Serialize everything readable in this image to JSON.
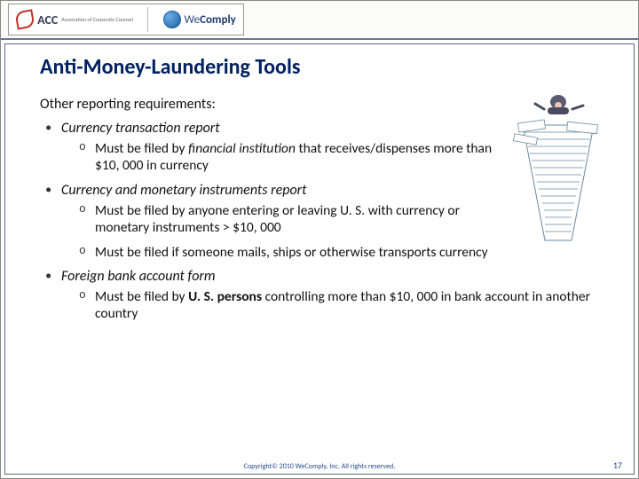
{
  "header": {
    "logo1_main": "ACC",
    "logo1_sub": "Association of\nCorporate Counsel",
    "logo2_text_pre": "We",
    "logo2_text_post": "Comply"
  },
  "title": "Anti-Money-Laundering Tools",
  "lead": "Other reporting requirements:",
  "bullets": [
    {
      "label": "Currency transaction report",
      "italic": true,
      "sub": [
        "Must be filed by <i>financial institution</i> that receives/dispenses more than $10, 000 in currency"
      ],
      "wrap": "narrow"
    },
    {
      "label": "Currency and monetary instruments report",
      "italic": true,
      "sub": [
        "Must be filed by anyone entering or leaving U. S. with currency or monetary instruments > $10, 000",
        "Must be filed if someone mails, ships or otherwise transports currency"
      ],
      "wrap": "narrow"
    },
    {
      "label": "Foreign bank account form",
      "italic": true,
      "sub": [
        "Must be filed by <b>U. S. persons</b> controlling more than $10, 000 in bank account in another country"
      ],
      "wrap": "wide"
    }
  ],
  "footer": "Copyright© 2010 WeComply, Inc. All rights reserved.",
  "page_number": "17",
  "illustration": {
    "desc": "Cartoon figure flying over a tall messy stack of paper sheets",
    "colors": {
      "paper": "#ffffff",
      "edge": "#6a8aa0",
      "figure": "#5a5a70"
    }
  },
  "colors": {
    "title": "#002060",
    "rule": "#6a7a8c",
    "footer": "#2a4a8a"
  }
}
